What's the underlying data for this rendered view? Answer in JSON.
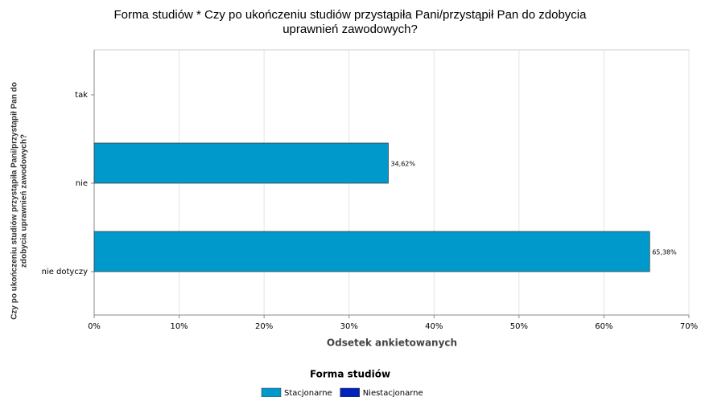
{
  "chart_data": {
    "type": "hbar",
    "title": [
      "Forma studiów * Czy po ukończeniu studiów przystąpiła Pani/przystąpił Pan do zdobycia",
      "uprawnień zawodowych?"
    ],
    "x_label": "Odsetek ankietowanych",
    "y_label": [
      "Czy po ukończeniu studiów przystąpiła Pani/przystąpił Pan do",
      "zdobycia uprawnień zawodowych?"
    ],
    "legend_title": "Forma studiów",
    "categories": [
      "tak",
      "nie",
      "nie dotyczy"
    ],
    "series": [
      {
        "name": "Stacjonarne",
        "color": "#0099cc",
        "values": [
          null,
          34.62,
          65.38
        ],
        "value_labels": [
          null,
          "34,62%",
          "65,38%"
        ]
      },
      {
        "name": "Niestacjonarne",
        "color": "#0022bb",
        "values": [
          null,
          null,
          null
        ]
      }
    ],
    "xlim": [
      0,
      70
    ],
    "xticks": [
      {
        "value": 0,
        "label": "0%"
      },
      {
        "value": 10,
        "label": "10%"
      },
      {
        "value": 20,
        "label": "20%"
      },
      {
        "value": 30,
        "label": "30%"
      },
      {
        "value": 40,
        "label": "40%"
      },
      {
        "value": 50,
        "label": "50%"
      },
      {
        "value": 60,
        "label": "60%"
      },
      {
        "value": 70,
        "label": "70%"
      }
    ],
    "grid": true
  }
}
